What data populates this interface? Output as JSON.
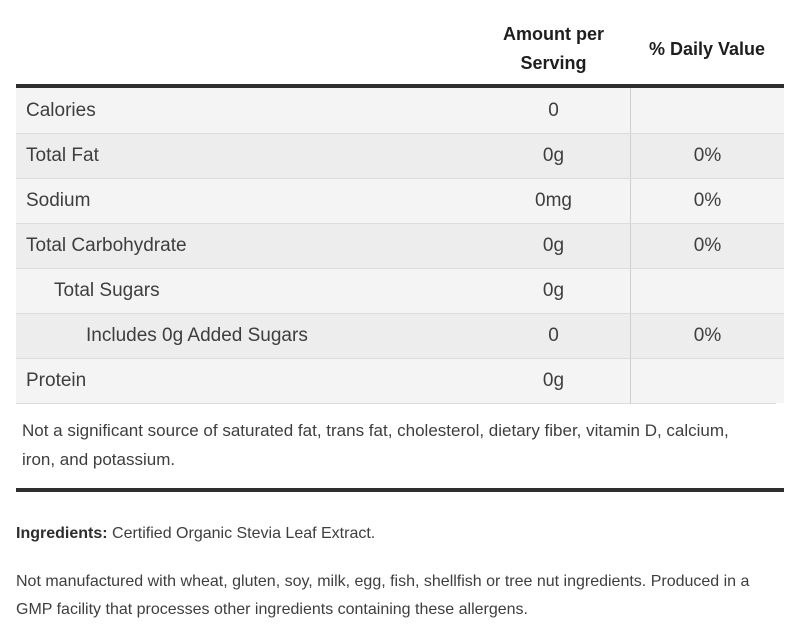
{
  "colors": {
    "border_dark": "#2e2e2e",
    "row_divider": "#dcdcdc",
    "column_divider": "#cfcfcf",
    "row_odd_bg": "#f4f4f4",
    "row_even_bg": "#ededed",
    "text": "#3e3e3e",
    "header_text": "#1e1e1e"
  },
  "table": {
    "header": {
      "amount_label": "Amount per Serving",
      "daily_label": "% Daily Value"
    },
    "rows": [
      {
        "label": "Calories",
        "amount": "0",
        "daily": "",
        "indent": 0
      },
      {
        "label": "Total Fat",
        "amount": "0g",
        "daily": "0%",
        "indent": 0
      },
      {
        "label": "Sodium",
        "amount": "0mg",
        "daily": "0%",
        "indent": 0
      },
      {
        "label": "Total Carbohydrate",
        "amount": "0g",
        "daily": "0%",
        "indent": 0
      },
      {
        "label": "Total Sugars",
        "amount": "0g",
        "daily": "",
        "indent": 1
      },
      {
        "label": "Includes 0g Added Sugars",
        "amount": "0",
        "daily": "0%",
        "indent": 2
      },
      {
        "label": "Protein",
        "amount": "0g",
        "daily": "",
        "indent": 0
      }
    ],
    "footnote": "Not a significant source of saturated fat, trans fat, cholesterol, dietary fiber, vitamin D, calcium, iron, and potassium."
  },
  "ingredients": {
    "label": "Ingredients:",
    "value": "Certified Organic Stevia Leaf Extract."
  },
  "allergen_note": "Not manufactured with wheat, gluten, soy, milk, egg, fish, shellfish or tree nut ingredients. Produced in a GMP facility that processes other ingredients containing these allergens."
}
